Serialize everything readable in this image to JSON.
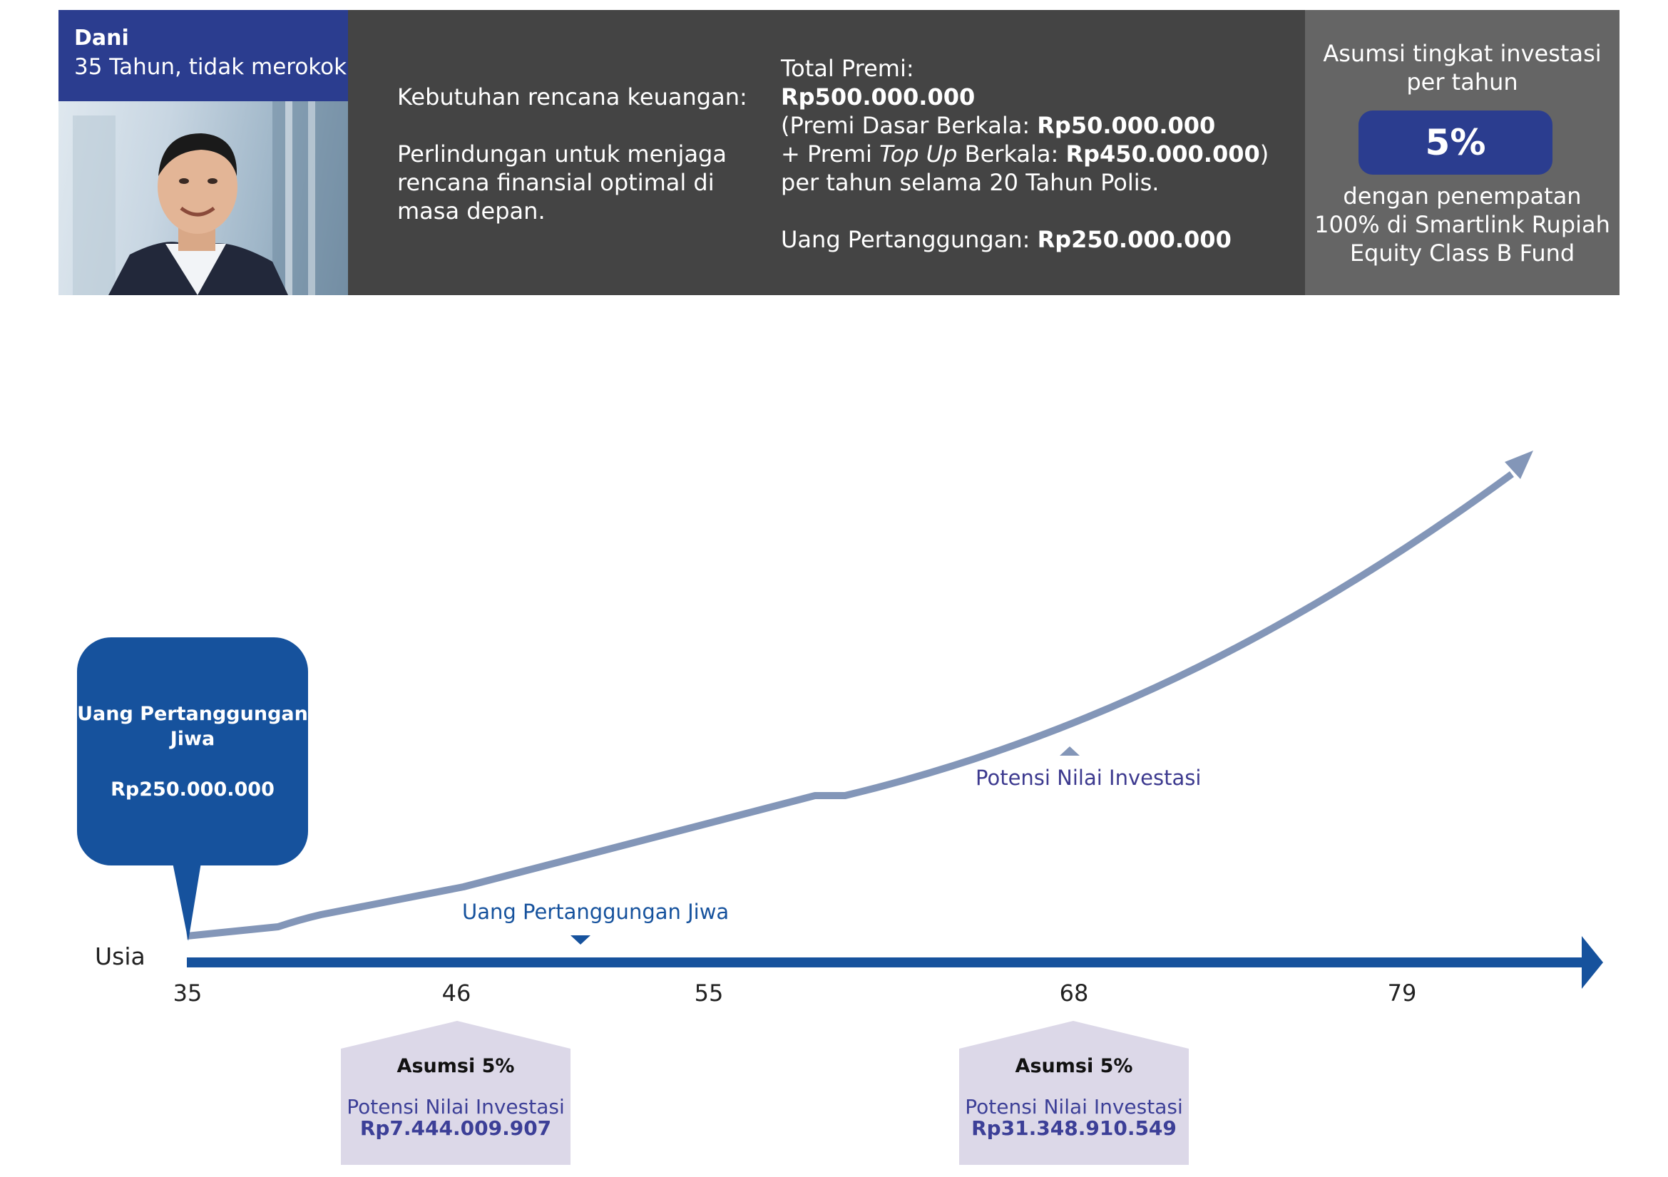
{
  "profile": {
    "name": "Dani",
    "description": "35 Tahun, tidak merokok"
  },
  "needs": {
    "title": "Kebutuhan rencana keuangan:",
    "line1": "Perlindungan untuk menjaga",
    "line2": "rencana finansial optimal di",
    "line3": "masa depan."
  },
  "premium": {
    "total_label": "Total Premi:",
    "total_value": "Rp500.000.000",
    "base_prefix": "(Premi Dasar Berkala: ",
    "base_value": "Rp50.000.000",
    "topup_prefix": "+ Premi ",
    "topup_italic": "Top Up",
    "topup_mid": " Berkala: ",
    "topup_value": "Rp450.000.000",
    "topup_suffix": ")",
    "period": "per tahun selama 20 Tahun Polis.",
    "sum_assured_label": "Uang Pertanggungan: ",
    "sum_assured_value": "Rp250.000.000"
  },
  "investment": {
    "title_line1": "Asumsi tingkat investasi",
    "title_line2": "per tahun",
    "rate": "5%",
    "desc_line1": "dengan penempatan",
    "desc_line2": "100% di Smartlink Rupiah",
    "desc_line3": "Equity Class B Fund"
  },
  "callout": {
    "title_line1": "Uang Pertanggungan",
    "title_line2": "Jiwa",
    "value": "Rp250.000.000"
  },
  "chart_data": {
    "type": "line",
    "xlabel": "Usia",
    "x_ticks": [
      "35",
      "46",
      "55",
      "68",
      "79"
    ],
    "series": [
      {
        "name": "Potensi Nilai Investasi",
        "trend": "rising"
      },
      {
        "name": "Uang Pertanggungan Jiwa",
        "value": "Rp250.000.000",
        "trend": "flat"
      }
    ],
    "annotations": [
      {
        "age": 46,
        "title": "Asumsi 5%",
        "label": "Potensi Nilai Investasi",
        "value": "Rp7.444.009.907"
      },
      {
        "age": 68,
        "title": "Asumsi 5%",
        "label": "Potensi Nilai Investasi",
        "value": "Rp31.348.910.549"
      }
    ]
  },
  "colors": {
    "navy": "#2b3d8f",
    "axis_blue": "#16529d",
    "curve": "#8396b8",
    "box_lavender": "#dcd8e8",
    "panel_dark": "#444444",
    "panel_grey": "#656565"
  }
}
